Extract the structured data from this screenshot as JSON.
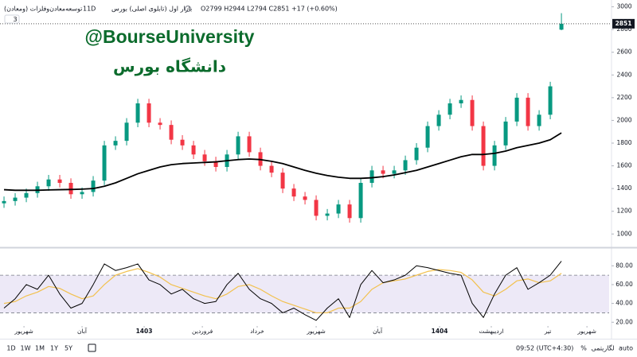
{
  "header": {
    "symbol": "توسعه‌معادن‌وفلزات (ومعادن)",
    "interval": "11D",
    "market": "بازار اول (تابلوی اصلی) بورس",
    "ohlc": "O2799 H2944 L2794 C2851 +17 (+0.60%)",
    "indicator_count": "3"
  },
  "watermark": {
    "handle": "@BourseUniversity",
    "name": "دانشگاه بورس"
  },
  "footer": {
    "ranges": [
      "1D",
      "1W",
      "1M",
      "1Y",
      "5Y"
    ],
    "time": "09:52 (UTC+4:30)",
    "percent": "%",
    "log": "لگاریتمی",
    "auto": "auto"
  },
  "chart_data": [
    {
      "type": "candlestick",
      "up_color": "#089981",
      "down_color": "#f23645",
      "open": [
        1270,
        1290,
        1320,
        1360,
        1420,
        1480,
        1450,
        1350,
        1370,
        1470,
        1780,
        1820,
        1980,
        2150,
        1980,
        1960,
        1830,
        1780,
        1700,
        1640,
        1590,
        1700,
        1860,
        1720,
        1600,
        1540,
        1400,
        1330,
        1300,
        1160,
        1180,
        1260,
        1140,
        1450,
        1560,
        1530,
        1560,
        1650,
        1760,
        1950,
        2050,
        2150,
        2180,
        1950,
        1600,
        1780,
        1990,
        2200,
        1950,
        2050,
        2799
      ],
      "high": [
        1330,
        1360,
        1400,
        1460,
        1520,
        1520,
        1490,
        1410,
        1510,
        1820,
        1860,
        2020,
        2190,
        2190,
        2020,
        2000,
        1870,
        1820,
        1740,
        1680,
        1740,
        1900,
        1900,
        1760,
        1640,
        1580,
        1440,
        1370,
        1340,
        1220,
        1300,
        1300,
        1490,
        1600,
        1600,
        1600,
        1690,
        1800,
        1990,
        2090,
        2190,
        2220,
        2220,
        1990,
        1820,
        2030,
        2240,
        2240,
        2090,
        2340,
        2944
      ],
      "low": [
        1230,
        1250,
        1280,
        1320,
        1380,
        1410,
        1310,
        1310,
        1330,
        1430,
        1740,
        1780,
        1940,
        1940,
        1920,
        1790,
        1740,
        1660,
        1600,
        1550,
        1550,
        1660,
        1680,
        1560,
        1500,
        1360,
        1290,
        1260,
        1120,
        1120,
        1140,
        1100,
        1100,
        1410,
        1490,
        1490,
        1520,
        1610,
        1720,
        1910,
        2010,
        2110,
        1910,
        1560,
        1560,
        1740,
        1950,
        1910,
        1910,
        2010,
        2794
      ],
      "close": [
        1290,
        1320,
        1360,
        1420,
        1480,
        1450,
        1350,
        1370,
        1470,
        1780,
        1820,
        1980,
        2150,
        1980,
        1960,
        1830,
        1780,
        1700,
        1640,
        1590,
        1700,
        1860,
        1720,
        1600,
        1540,
        1400,
        1330,
        1300,
        1160,
        1180,
        1260,
        1140,
        1450,
        1560,
        1530,
        1560,
        1650,
        1760,
        1950,
        2050,
        2150,
        2180,
        1950,
        1600,
        1780,
        1990,
        2200,
        1950,
        2050,
        2300,
        2851
      ],
      "series": [
        {
          "color": "#000000",
          "values": [
            1390,
            1385,
            1385,
            1385,
            1388,
            1390,
            1392,
            1395,
            1400,
            1420,
            1450,
            1490,
            1530,
            1560,
            1590,
            1610,
            1620,
            1625,
            1630,
            1635,
            1645,
            1655,
            1660,
            1655,
            1640,
            1620,
            1590,
            1560,
            1535,
            1515,
            1500,
            1490,
            1490,
            1495,
            1505,
            1520,
            1540,
            1560,
            1590,
            1620,
            1650,
            1680,
            1700,
            1700,
            1710,
            1730,
            1760,
            1780,
            1800,
            1830,
            1890
          ]
        }
      ],
      "xlim": [
        -0.36,
        54.28
      ],
      "ylim": [
        890,
        3060
      ],
      "yticks": [
        1000,
        1200,
        1400,
        1600,
        1800,
        2000,
        2200,
        2400,
        2600,
        2800,
        3000
      ],
      "grid": false
    },
    {
      "type": "line",
      "band_color": "#ede9f7",
      "series": [
        {
          "color": "#000000",
          "values": [
            35,
            45,
            60,
            55,
            70,
            50,
            35,
            40,
            60,
            82,
            75,
            78,
            82,
            65,
            60,
            50,
            55,
            45,
            40,
            42,
            60,
            72,
            55,
            45,
            40,
            30,
            35,
            28,
            22,
            35,
            45,
            25,
            60,
            75,
            62,
            65,
            70,
            80,
            78,
            75,
            72,
            70,
            40,
            25,
            50,
            70,
            78,
            55,
            62,
            70,
            85
          ]
        },
        {
          "color": "#f2c14e",
          "values": [
            40,
            42,
            48,
            52,
            58,
            56,
            50,
            45,
            48,
            60,
            70,
            74,
            77,
            73,
            68,
            60,
            56,
            52,
            48,
            45,
            50,
            58,
            60,
            55,
            48,
            42,
            38,
            34,
            30,
            30,
            35,
            35,
            42,
            55,
            62,
            64,
            66,
            70,
            74,
            76,
            75,
            73,
            65,
            52,
            48,
            55,
            64,
            66,
            62,
            64,
            72
          ]
        }
      ],
      "bands": [
        30,
        70
      ],
      "xlim": [
        -0.36,
        54.28
      ],
      "ylim": [
        16,
        98
      ],
      "yticks": [
        {
          "value": 20,
          "label": "20.00"
        },
        {
          "value": 40,
          "label": "40.00"
        },
        {
          "value": 60,
          "label": "60.00"
        },
        {
          "value": 80,
          "label": "80.00"
        }
      ],
      "xticks": [
        {
          "value": 1.79,
          "label": "شهریور"
        },
        {
          "value": 7,
          "label": "آبان"
        },
        {
          "value": 12.57,
          "label": "1403"
        },
        {
          "value": 17.79,
          "label": "فروردین"
        },
        {
          "value": 22.71,
          "label": "خرداد"
        },
        {
          "value": 28,
          "label": "شهریور"
        },
        {
          "value": 33.5,
          "label": "آبان"
        },
        {
          "value": 39.07,
          "label": "1404"
        },
        {
          "value": 43.71,
          "label": "اردیبهشت"
        },
        {
          "value": 48.79,
          "label": "تیر"
        },
        {
          "value": 52.29,
          "label": "شهریور"
        }
      ],
      "grid": false
    }
  ]
}
